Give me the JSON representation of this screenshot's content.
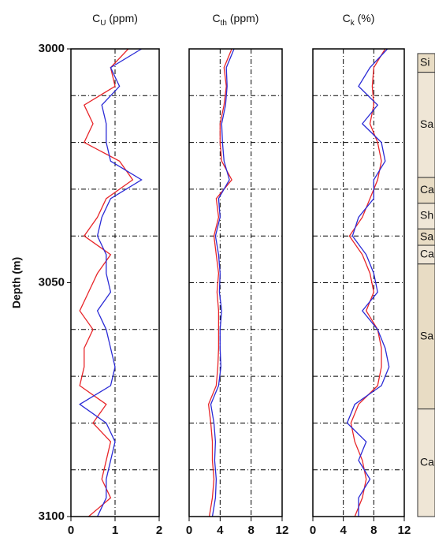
{
  "chart_data": [
    {
      "type": "log",
      "title": {
        "main": "C",
        "sub": "U",
        "rest": " (ppm)"
      },
      "ylabel": "Depth (m)",
      "xlim": [
        0,
        2
      ],
      "xticks": [
        0,
        1,
        2
      ],
      "ylim": [
        3000,
        3100
      ],
      "yticks": [
        3000,
        3050,
        3100
      ],
      "minor_yticks": [
        3010,
        3020,
        3030,
        3040,
        3060,
        3070,
        3080,
        3090
      ],
      "y": [
        3000,
        3004,
        3008,
        3012,
        3016,
        3020,
        3024,
        3028,
        3032,
        3036,
        3040,
        3044,
        3048,
        3052,
        3056,
        3060,
        3064,
        3068,
        3072,
        3076,
        3080,
        3084,
        3088,
        3092,
        3096,
        3100
      ],
      "series": [
        {
          "color": "#e8262a",
          "values": [
            1.3,
            0.9,
            1.0,
            0.3,
            0.5,
            0.3,
            1.1,
            1.4,
            0.8,
            0.6,
            0.3,
            0.9,
            0.6,
            0.4,
            0.2,
            0.5,
            0.3,
            0.3,
            0.2,
            0.8,
            0.5,
            0.9,
            0.8,
            0.7,
            0.9,
            0.4
          ]
        },
        {
          "color": "#2b2bd6",
          "values": [
            1.6,
            0.9,
            1.1,
            0.7,
            0.8,
            0.8,
            0.9,
            1.6,
            0.9,
            0.7,
            0.6,
            0.8,
            0.8,
            0.9,
            0.6,
            0.8,
            0.9,
            1.0,
            0.9,
            0.2,
            0.8,
            1.0,
            0.9,
            0.8,
            0.8,
            0.6
          ]
        }
      ]
    },
    {
      "type": "log",
      "title": {
        "main": "C",
        "sub": "th",
        "rest": " (ppm)"
      },
      "xlim": [
        0,
        12
      ],
      "xticks": [
        0,
        4,
        8,
        12
      ],
      "ylim": [
        3000,
        3100
      ],
      "minor_yticks": [
        3010,
        3020,
        3030,
        3040,
        3050,
        3060,
        3070,
        3080,
        3090
      ],
      "y": [
        3000,
        3004,
        3008,
        3012,
        3016,
        3020,
        3024,
        3028,
        3032,
        3036,
        3040,
        3044,
        3048,
        3052,
        3056,
        3060,
        3064,
        3068,
        3072,
        3076,
        3080,
        3084,
        3088,
        3092,
        3096,
        3100
      ],
      "series": [
        {
          "color": "#e8262a",
          "values": [
            5.5,
            4.5,
            4.8,
            4.5,
            4.0,
            4.0,
            4.2,
            5.5,
            3.5,
            3.8,
            3.2,
            3.5,
            3.8,
            3.6,
            3.8,
            3.8,
            3.8,
            3.7,
            3.5,
            2.5,
            2.8,
            3.0,
            3.0,
            3.2,
            3.0,
            2.6
          ]
        },
        {
          "color": "#2b2bd6",
          "values": [
            5.8,
            4.8,
            4.9,
            4.7,
            4.2,
            4.3,
            4.5,
            5.2,
            3.8,
            4.0,
            3.4,
            3.8,
            4.0,
            3.9,
            4.2,
            4.0,
            4.0,
            4.1,
            3.8,
            2.8,
            3.2,
            3.4,
            3.3,
            3.5,
            3.4,
            3.0
          ]
        }
      ]
    },
    {
      "type": "log",
      "title": {
        "main": "C",
        "sub": "k",
        "rest": " (%)"
      },
      "xlim": [
        0,
        12
      ],
      "xticks": [
        0,
        4,
        8,
        12
      ],
      "ylim": [
        3000,
        3100
      ],
      "minor_yticks": [
        3010,
        3020,
        3030,
        3040,
        3050,
        3060,
        3070,
        3080,
        3090
      ],
      "y": [
        3000,
        3004,
        3008,
        3012,
        3016,
        3020,
        3024,
        3028,
        3032,
        3036,
        3040,
        3044,
        3048,
        3052,
        3056,
        3060,
        3064,
        3068,
        3072,
        3076,
        3080,
        3084,
        3088,
        3092,
        3096,
        3100
      ],
      "series": [
        {
          "color": "#e8262a",
          "values": [
            9.5,
            8.0,
            7.8,
            8.0,
            7.5,
            8.5,
            9.0,
            8.5,
            7.5,
            6.5,
            4.8,
            6.5,
            7.5,
            8.0,
            7.0,
            8.5,
            9.0,
            9.0,
            8.5,
            6.0,
            5.0,
            5.5,
            6.5,
            7.0,
            6.5,
            5.5
          ]
        },
        {
          "color": "#2b2bd6",
          "values": [
            9.8,
            7.5,
            6.0,
            8.5,
            6.5,
            9.0,
            9.5,
            8.0,
            8.0,
            6.0,
            5.2,
            7.0,
            8.0,
            8.5,
            6.5,
            8.5,
            9.5,
            10,
            9.0,
            5.5,
            4.5,
            7.0,
            6.0,
            7.5,
            6.0,
            6.0
          ]
        }
      ]
    },
    {
      "type": "lithology",
      "ylim": [
        3000,
        3100
      ],
      "layers": [
        {
          "label": "Si",
          "top": 3001,
          "bottom": 3005
        },
        {
          "label": "Sa",
          "top": 3005,
          "bottom": 3027.5
        },
        {
          "label": "Ca",
          "top": 3027.5,
          "bottom": 3033
        },
        {
          "label": "Sh",
          "top": 3033,
          "bottom": 3038.5
        },
        {
          "label": "Sa",
          "top": 3038.5,
          "bottom": 3042
        },
        {
          "label": "Ca",
          "top": 3042,
          "bottom": 3046
        },
        {
          "label": "Sa",
          "top": 3046,
          "bottom": 3077
        },
        {
          "label": "Ca",
          "top": 3077,
          "bottom": 3100
        }
      ]
    }
  ]
}
